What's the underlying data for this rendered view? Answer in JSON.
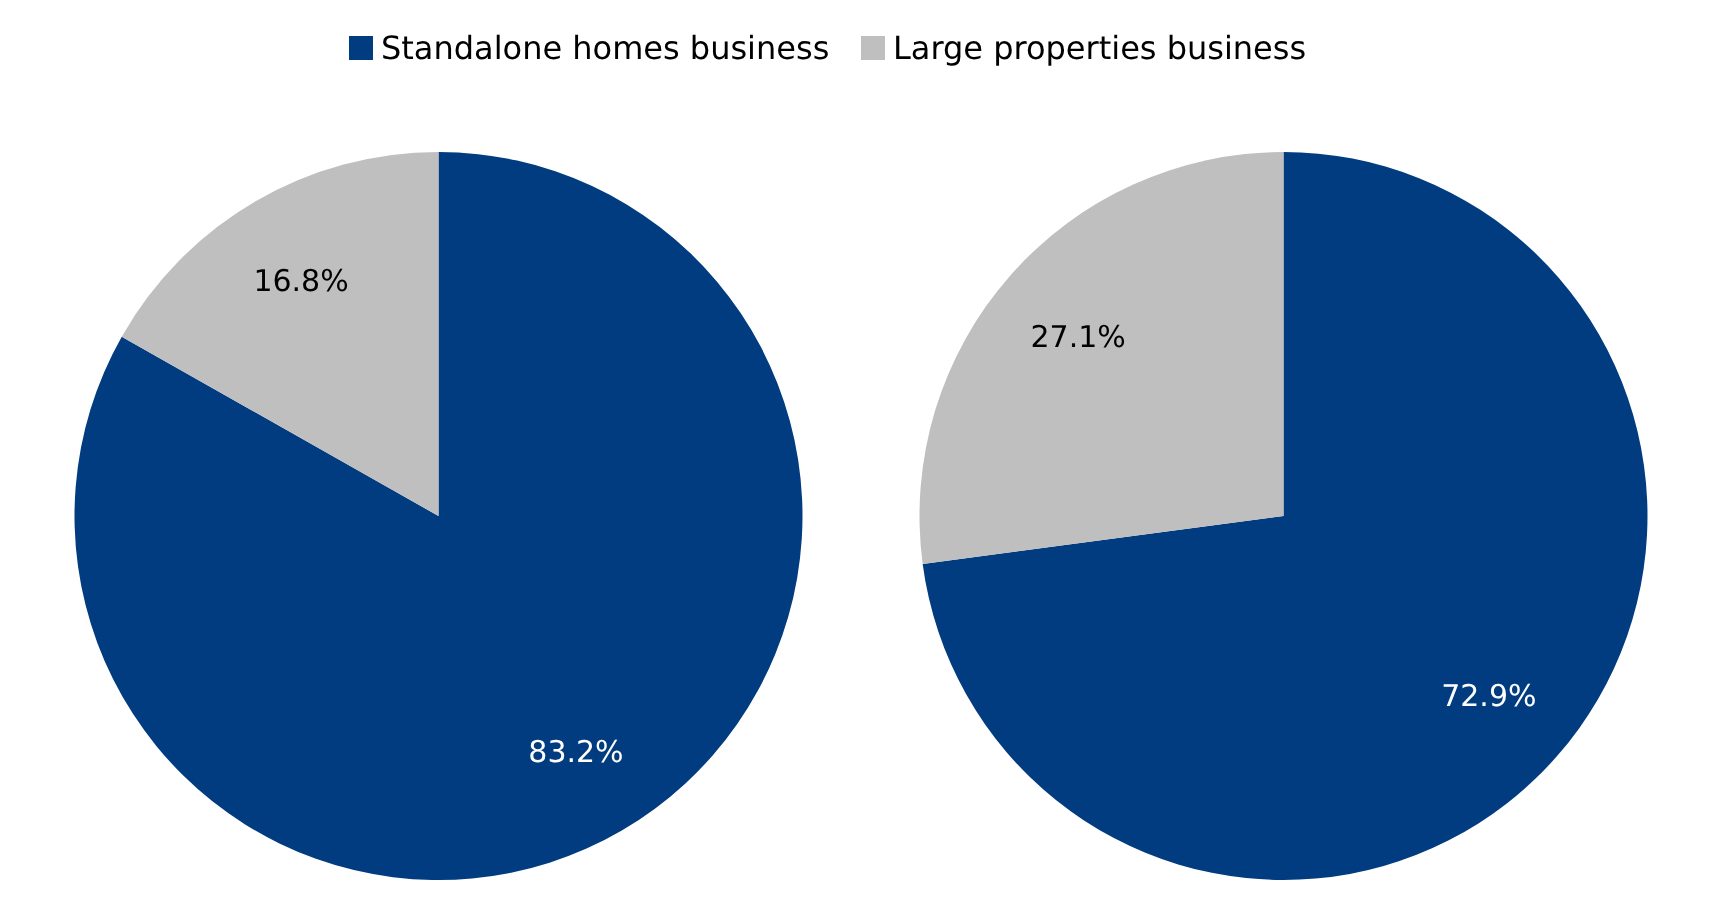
{
  "chart_data": [
    {
      "type": "pie",
      "categories": [
        "Standalone homes business",
        "Large properties business"
      ],
      "values": [
        83.2,
        16.8
      ],
      "colors": [
        "#003c7f",
        "#bfbfbf"
      ],
      "value_labels": [
        "83.2%",
        "16.8%"
      ],
      "legend": "top"
    },
    {
      "type": "pie",
      "categories": [
        null,
        null
      ],
      "values": [
        72.9,
        27.1
      ],
      "colors": [
        "#003c7f",
        "#bfbfbf"
      ],
      "value_labels": [
        "72.9%",
        "27.1%"
      ]
    }
  ]
}
